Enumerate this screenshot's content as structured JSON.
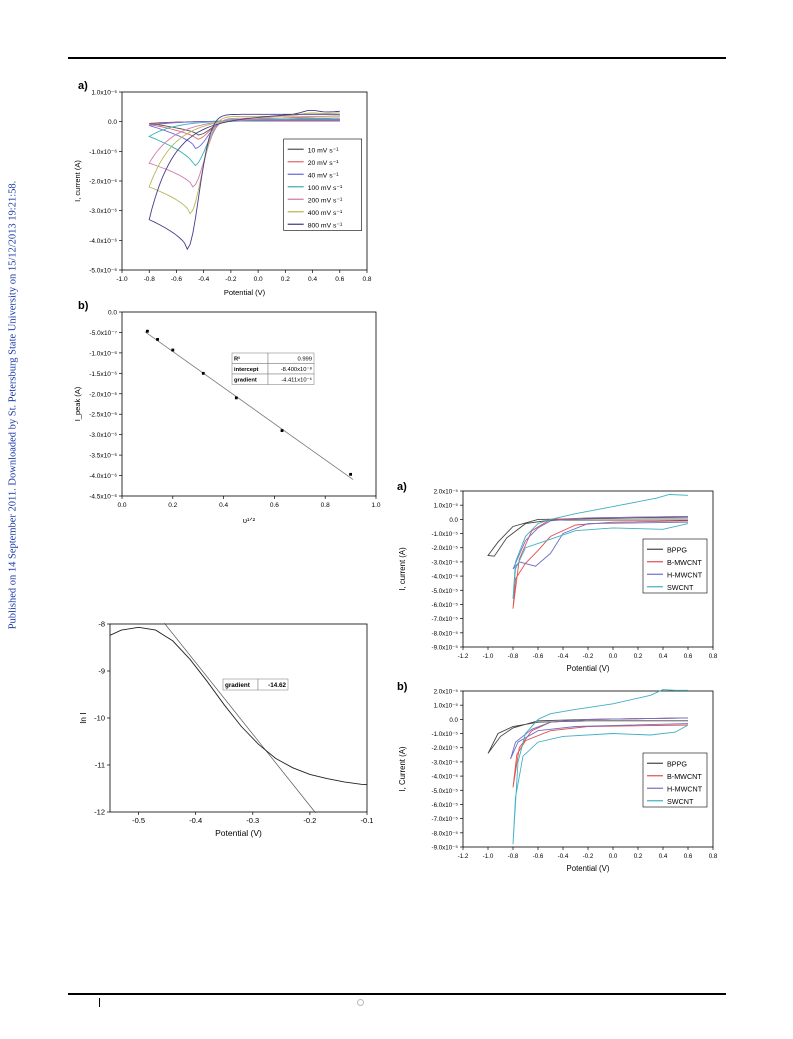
{
  "side_note": "Published on 14 September 2011. Downloaded by St. Petersburg State University on 15/12/2013 19:21:58.",
  "chart_data": [
    {
      "id": "fig1a",
      "type": "line",
      "panel_label": "a)",
      "xlabel": "Potential (V)",
      "ylabel": "I, current (A)",
      "xlim": [
        -1.0,
        0.8
      ],
      "ylim": [
        -5e-06,
        1e-06
      ],
      "x_ticks": [
        -1.0,
        -0.8,
        -0.6,
        -0.4,
        -0.2,
        0.0,
        0.2,
        0.4,
        0.6,
        0.8
      ],
      "x_tick_labels": [
        "-1.0",
        "-0.8",
        "-0.6",
        "-0.4",
        "-0.2",
        "0.0",
        "0.2",
        "0.4",
        "0.6",
        "0.8"
      ],
      "y_ticks": [
        1e-06,
        0,
        -1e-06,
        -2e-06,
        -3e-06,
        -4e-06,
        -5e-06
      ],
      "y_tick_labels": [
        "1.0x10⁻⁶",
        "0.0",
        "-1.0x10⁻⁶",
        "-2.0x10⁻⁶",
        "-3.0x10⁻⁶",
        "-4.0x10⁻⁶",
        "-5.0x10⁻⁶"
      ],
      "legend_position": "right",
      "series": [
        {
          "name": "10 mV s⁻¹",
          "color": "#555555",
          "start": -6e-08,
          "peak_x": -0.44,
          "peak_y": -4.5e-07,
          "end_fwd": 2e-08,
          "rev_end": 5e-08,
          "rev_bump": 0.0
        },
        {
          "name": "20 mV s⁻¹",
          "color": "#e06c6c",
          "start": -9e-08,
          "peak_x": -0.45,
          "peak_y": -6e-07,
          "end_fwd": 3e-08,
          "rev_end": 6e-08,
          "rev_bump": 0.0
        },
        {
          "name": "40 mV s⁻¹",
          "color": "#6a6ae0",
          "start": -1.3e-07,
          "peak_x": -0.46,
          "peak_y": -9e-07,
          "end_fwd": 5e-08,
          "rev_end": 8e-08,
          "rev_bump": 0.0
        },
        {
          "name": "100 mV s⁻¹",
          "color": "#3ab0b0",
          "start": -5e-07,
          "peak_x": -0.47,
          "peak_y": -1.5e-06,
          "end_fwd": 8e-08,
          "rev_end": 1.2e-07,
          "rev_bump": 0.0
        },
        {
          "name": "200 mV s⁻¹",
          "color": "#d07ab0",
          "start": -1.4e-06,
          "peak_x": -0.48,
          "peak_y": -2.2e-06,
          "end_fwd": 1.2e-07,
          "rev_end": 2e-07,
          "rev_bump": 0.0
        },
        {
          "name": "400 mV s⁻¹",
          "color": "#b8b85a",
          "start": -2.2e-06,
          "peak_x": -0.5,
          "peak_y": -3.1e-06,
          "end_fwd": 1.8e-07,
          "rev_end": 3e-07,
          "rev_bump": 5e-08
        },
        {
          "name": "800 mV s⁻¹",
          "color": "#4a3a8a",
          "start": -3.3e-06,
          "peak_x": -0.52,
          "peak_y": -4.3e-06,
          "end_fwd": 2.5e-07,
          "rev_end": 3.5e-07,
          "rev_bump": 1e-07
        }
      ]
    },
    {
      "id": "fig1b",
      "type": "scatter",
      "panel_label": "b)",
      "xlabel": "υ¹ᐟ²",
      "ylabel": "I_peak (A)",
      "xlim": [
        0.0,
        1.0
      ],
      "ylim": [
        -4.5e-06,
        0.0
      ],
      "x_ticks": [
        0.0,
        0.2,
        0.4,
        0.6,
        0.8,
        1.0
      ],
      "x_tick_labels": [
        "0.0",
        "0.2",
        "0.4",
        "0.6",
        "0.8",
        "1.0"
      ],
      "y_ticks": [
        0,
        -5e-07,
        -1e-06,
        -1.5e-06,
        -2e-06,
        -2.5e-06,
        -3e-06,
        -3.5e-06,
        -4e-06,
        -4.5e-06
      ],
      "y_tick_labels": [
        "0.0",
        "-5.0x10⁻⁷",
        "-1.0x10⁻⁶",
        "-1.5x10⁻⁶",
        "-2.0x10⁻⁶",
        "-2.5x10⁻⁶",
        "-3.0x10⁻⁶",
        "-3.5x10⁻⁶",
        "-4.0x10⁻⁶",
        "-4.5x10⁻⁶"
      ],
      "points": [
        [
          0.1,
          -4.7e-07
        ],
        [
          0.14,
          -6.7e-07
        ],
        [
          0.2,
          -9.3e-07
        ],
        [
          0.32,
          -1.5e-06
        ],
        [
          0.45,
          -2.1e-06
        ],
        [
          0.63,
          -2.9e-06
        ],
        [
          0.9,
          -3.97e-06
        ]
      ],
      "fit": {
        "intercept": -8.4e-08,
        "gradient": -4.411e-06
      },
      "fit_table": [
        {
          "key": "R²",
          "value": "0.999"
        },
        {
          "key": "intercept",
          "value": "-8.400x10⁻⁸"
        },
        {
          "key": "gradient",
          "value": "-4.411x10⁻⁶"
        }
      ]
    },
    {
      "id": "fig_tafel",
      "type": "line",
      "xlabel": "Potential (V)",
      "ylabel": "ln I",
      "xlim": [
        -0.55,
        -0.1
      ],
      "ylim": [
        -12,
        -8
      ],
      "x_ticks": [
        -0.5,
        -0.4,
        -0.3,
        -0.2,
        -0.1
      ],
      "x_tick_labels": [
        "-0.5",
        "-0.4",
        "-0.3",
        "-0.2",
        "-0.1"
      ],
      "y_ticks": [
        -8,
        -9,
        -10,
        -11,
        -12
      ],
      "y_tick_labels": [
        "-8",
        "-9",
        "-10",
        "-11",
        "-12"
      ],
      "curve": [
        [
          -0.55,
          -8.24
        ],
        [
          -0.53,
          -8.13
        ],
        [
          -0.5,
          -8.07
        ],
        [
          -0.47,
          -8.13
        ],
        [
          -0.44,
          -8.36
        ],
        [
          -0.41,
          -8.75
        ],
        [
          -0.38,
          -9.22
        ],
        [
          -0.35,
          -9.72
        ],
        [
          -0.32,
          -10.18
        ],
        [
          -0.29,
          -10.56
        ],
        [
          -0.26,
          -10.86
        ],
        [
          -0.23,
          -11.06
        ],
        [
          -0.2,
          -11.2
        ],
        [
          -0.17,
          -11.29
        ],
        [
          -0.14,
          -11.36
        ],
        [
          -0.11,
          -11.41
        ],
        [
          -0.1,
          -11.42
        ]
      ],
      "fit_line": [
        [
          -0.455,
          -7.98
        ],
        [
          -0.19,
          -12.02
        ]
      ],
      "annotation": {
        "key": "gradient",
        "value": "-14.62"
      }
    },
    {
      "id": "fig2a",
      "type": "line",
      "panel_label": "a)",
      "xlabel": "Potential (V)",
      "ylabel": "I, current (A)",
      "xlim": [
        -1.2,
        0.8
      ],
      "ylim": [
        -9e-05,
        2e-05
      ],
      "x_ticks": [
        -1.2,
        -1.0,
        -0.8,
        -0.6,
        -0.4,
        -0.2,
        0.0,
        0.2,
        0.4,
        0.6,
        0.8
      ],
      "x_tick_labels": [
        "-1.2",
        "-1.0",
        "-0.8",
        "-0.6",
        "-0.4",
        "-0.2",
        "0.0",
        "0.2",
        "0.4",
        "0.6",
        "0.8"
      ],
      "y_ticks": [
        2e-05,
        1e-05,
        0,
        -1e-05,
        -2e-05,
        -3e-05,
        -4e-05,
        -5e-05,
        -6e-05,
        -7e-05,
        -8e-05,
        -9e-05
      ],
      "y_tick_labels": [
        "2.0x10⁻⁵",
        "1.0x10⁻⁵",
        "0.0",
        "-1.0x10⁻⁵",
        "-2.0x10⁻⁵",
        "-3.0x10⁻⁵",
        "-4.0x10⁻⁵",
        "-5.0x10⁻⁵",
        "-6.0x10⁻⁵",
        "-7.0x10⁻⁵",
        "-8.0x10⁻⁵",
        "-9.0x10⁻⁵"
      ],
      "legend_position": "right",
      "series": [
        {
          "name": "BPPG",
          "color": "#444444",
          "points": [
            [
              0.6,
              1e-06
            ],
            [
              0.2,
              1e-06
            ],
            [
              -0.2,
              5e-07
            ],
            [
              -0.6,
              0.0
            ],
            [
              -0.8,
              -5e-06
            ],
            [
              -0.92,
              -1.6e-05
            ],
            [
              -1.0,
              -2.55e-05
            ],
            [
              -0.95,
              -2.6e-05
            ],
            [
              -0.85,
              -1.3e-05
            ],
            [
              -0.7,
              -3e-06
            ],
            [
              -0.5,
              -5e-07
            ],
            [
              -0.2,
              -5e-07
            ],
            [
              0.2,
              -5e-07
            ],
            [
              0.6,
              -5e-07
            ]
          ]
        },
        {
          "name": "B-MWCNT",
          "color": "#e05050",
          "points": [
            [
              0.6,
              2e-06
            ],
            [
              0.2,
              1.5e-06
            ],
            [
              -0.2,
              1e-06
            ],
            [
              -0.5,
              0.0
            ],
            [
              -0.65,
              -8e-06
            ],
            [
              -0.75,
              -2.8e-05
            ],
            [
              -0.8,
              -6.3e-05
            ],
            [
              -0.78,
              -4.2e-05
            ],
            [
              -0.7,
              -3.1e-05
            ],
            [
              -0.6,
              -2.2e-05
            ],
            [
              -0.5,
              -1.2e-05
            ],
            [
              -0.3,
              -4e-06
            ],
            [
              0.0,
              -2e-06
            ],
            [
              0.6,
              -1e-06
            ]
          ]
        },
        {
          "name": "H-MWCNT",
          "color": "#7070c8",
          "points": [
            [
              0.6,
              2e-06
            ],
            [
              0.2,
              1.5e-06
            ],
            [
              -0.2,
              1e-06
            ],
            [
              -0.5,
              -1e-06
            ],
            [
              -0.6,
              -6e-06
            ],
            [
              -0.7,
              -1.5e-05
            ],
            [
              -0.8,
              -3.5e-05
            ],
            [
              -0.75,
              -3e-05
            ],
            [
              -0.62,
              -3.3e-05
            ],
            [
              -0.5,
              -2.4e-05
            ],
            [
              -0.4,
              -1e-05
            ],
            [
              -0.2,
              -3e-06
            ],
            [
              0.6,
              -2e-06
            ]
          ]
        },
        {
          "name": "SWCNT",
          "color": "#40b0c0",
          "points": [
            [
              0.6,
              1.7e-05
            ],
            [
              0.45,
              1.75e-05
            ],
            [
              0.35,
              1.5e-05
            ],
            [
              0.0,
              9e-06
            ],
            [
              -0.3,
              4e-06
            ],
            [
              -0.5,
              0.0
            ],
            [
              -0.6,
              -3e-06
            ],
            [
              -0.7,
              -1.2e-05
            ],
            [
              -0.78,
              -3e-05
            ],
            [
              -0.8,
              -5.6e-05
            ],
            [
              -0.78,
              -3.5e-05
            ],
            [
              -0.7,
              -2e-05
            ],
            [
              -0.5,
              -1.4e-05
            ],
            [
              -0.3,
              -8e-06
            ],
            [
              0.0,
              -6e-06
            ],
            [
              0.4,
              -7e-06
            ],
            [
              0.6,
              -3e-06
            ]
          ]
        }
      ]
    },
    {
      "id": "fig2b",
      "type": "line",
      "panel_label": "b)",
      "xlabel": "Potential (V)",
      "ylabel": "I, Current (A)",
      "xlim": [
        -1.2,
        0.8
      ],
      "ylim": [
        -9e-05,
        2e-05
      ],
      "x_ticks": [
        -1.2,
        -1.0,
        -0.8,
        -0.6,
        -0.4,
        -0.2,
        0.0,
        0.2,
        0.4,
        0.6,
        0.8
      ],
      "x_tick_labels": [
        "-1.2",
        "-1.0",
        "-0.8",
        "-0.6",
        "-0.4",
        "-0.2",
        "0.0",
        "0.2",
        "0.4",
        "0.6",
        "0.8"
      ],
      "y_ticks": [
        2e-05,
        1e-05,
        0,
        -1e-05,
        -2e-05,
        -3e-05,
        -4e-05,
        -5e-05,
        -6e-05,
        -7e-05,
        -8e-05,
        -9e-05
      ],
      "y_tick_labels": [
        "2.0x10⁻⁵",
        "1.0x10⁻⁵",
        "0.0",
        "-1.0x10⁻⁵",
        "-2.0x10⁻⁵",
        "-3.0x10⁻⁵",
        "-4.0x10⁻⁵",
        "-5.0x10⁻⁵",
        "-6.0x10⁻⁵",
        "-7.0x10⁻⁵",
        "-8.0x10⁻⁵",
        "-9.0x10⁻⁵"
      ],
      "legend_position": "right",
      "series": [
        {
          "name": "BPPG",
          "color": "#444444",
          "points": [
            [
              0.6,
              1e-06
            ],
            [
              0.2,
              5e-07
            ],
            [
              -0.2,
              0.0
            ],
            [
              -0.6,
              -1e-06
            ],
            [
              -0.8,
              -6e-06
            ],
            [
              -0.9,
              -1.2e-05
            ],
            [
              -1.0,
              -2.4e-05
            ],
            [
              -0.92,
              -1e-05
            ],
            [
              -0.8,
              -5e-06
            ],
            [
              -0.6,
              -2e-06
            ],
            [
              -0.2,
              -1e-06
            ],
            [
              0.6,
              -1e-06
            ]
          ]
        },
        {
          "name": "B-MWCNT",
          "color": "#e05050",
          "points": [
            [
              0.6,
              1e-06
            ],
            [
              0.2,
              5e-07
            ],
            [
              -0.2,
              0.0
            ],
            [
              -0.5,
              -2e-06
            ],
            [
              -0.65,
              -8e-06
            ],
            [
              -0.75,
              -2e-05
            ],
            [
              -0.8,
              -4.8e-05
            ],
            [
              -0.77,
              -2.5e-05
            ],
            [
              -0.7,
              -1.5e-05
            ],
            [
              -0.5,
              -8e-06
            ],
            [
              -0.2,
              -5e-06
            ],
            [
              0.6,
              -4e-06
            ]
          ]
        },
        {
          "name": "H-MWCNT",
          "color": "#7070c8",
          "points": [
            [
              0.6,
              1e-06
            ],
            [
              0.2,
              5e-07
            ],
            [
              -0.2,
              0.0
            ],
            [
              -0.5,
              -2e-06
            ],
            [
              -0.65,
              -7e-06
            ],
            [
              -0.78,
              -1.6e-05
            ],
            [
              -0.82,
              -2.8e-05
            ],
            [
              -0.76,
              -1.6e-05
            ],
            [
              -0.6,
              -8e-06
            ],
            [
              -0.3,
              -5e-06
            ],
            [
              0.6,
              -3e-06
            ]
          ]
        },
        {
          "name": "SWCNT",
          "color": "#40b0c0",
          "points": [
            [
              0.6,
              2.05e-05
            ],
            [
              0.5,
              2.05e-05
            ],
            [
              0.4,
              2.1e-05
            ],
            [
              0.3,
              1.7e-05
            ],
            [
              0.0,
              1.1e-05
            ],
            [
              -0.3,
              7e-06
            ],
            [
              -0.5,
              4e-06
            ],
            [
              -0.6,
              0.0
            ],
            [
              -0.7,
              -1e-05
            ],
            [
              -0.76,
              -3e-05
            ],
            [
              -0.8,
              -8.8e-05
            ],
            [
              -0.78,
              -5.5e-05
            ],
            [
              -0.72,
              -2.6e-05
            ],
            [
              -0.6,
              -1.6e-05
            ],
            [
              -0.4,
              -1.2e-05
            ],
            [
              0.0,
              -1e-05
            ],
            [
              0.3,
              -1.1e-05
            ],
            [
              0.5,
              -9e-06
            ],
            [
              0.6,
              -4e-06
            ]
          ]
        }
      ]
    }
  ]
}
